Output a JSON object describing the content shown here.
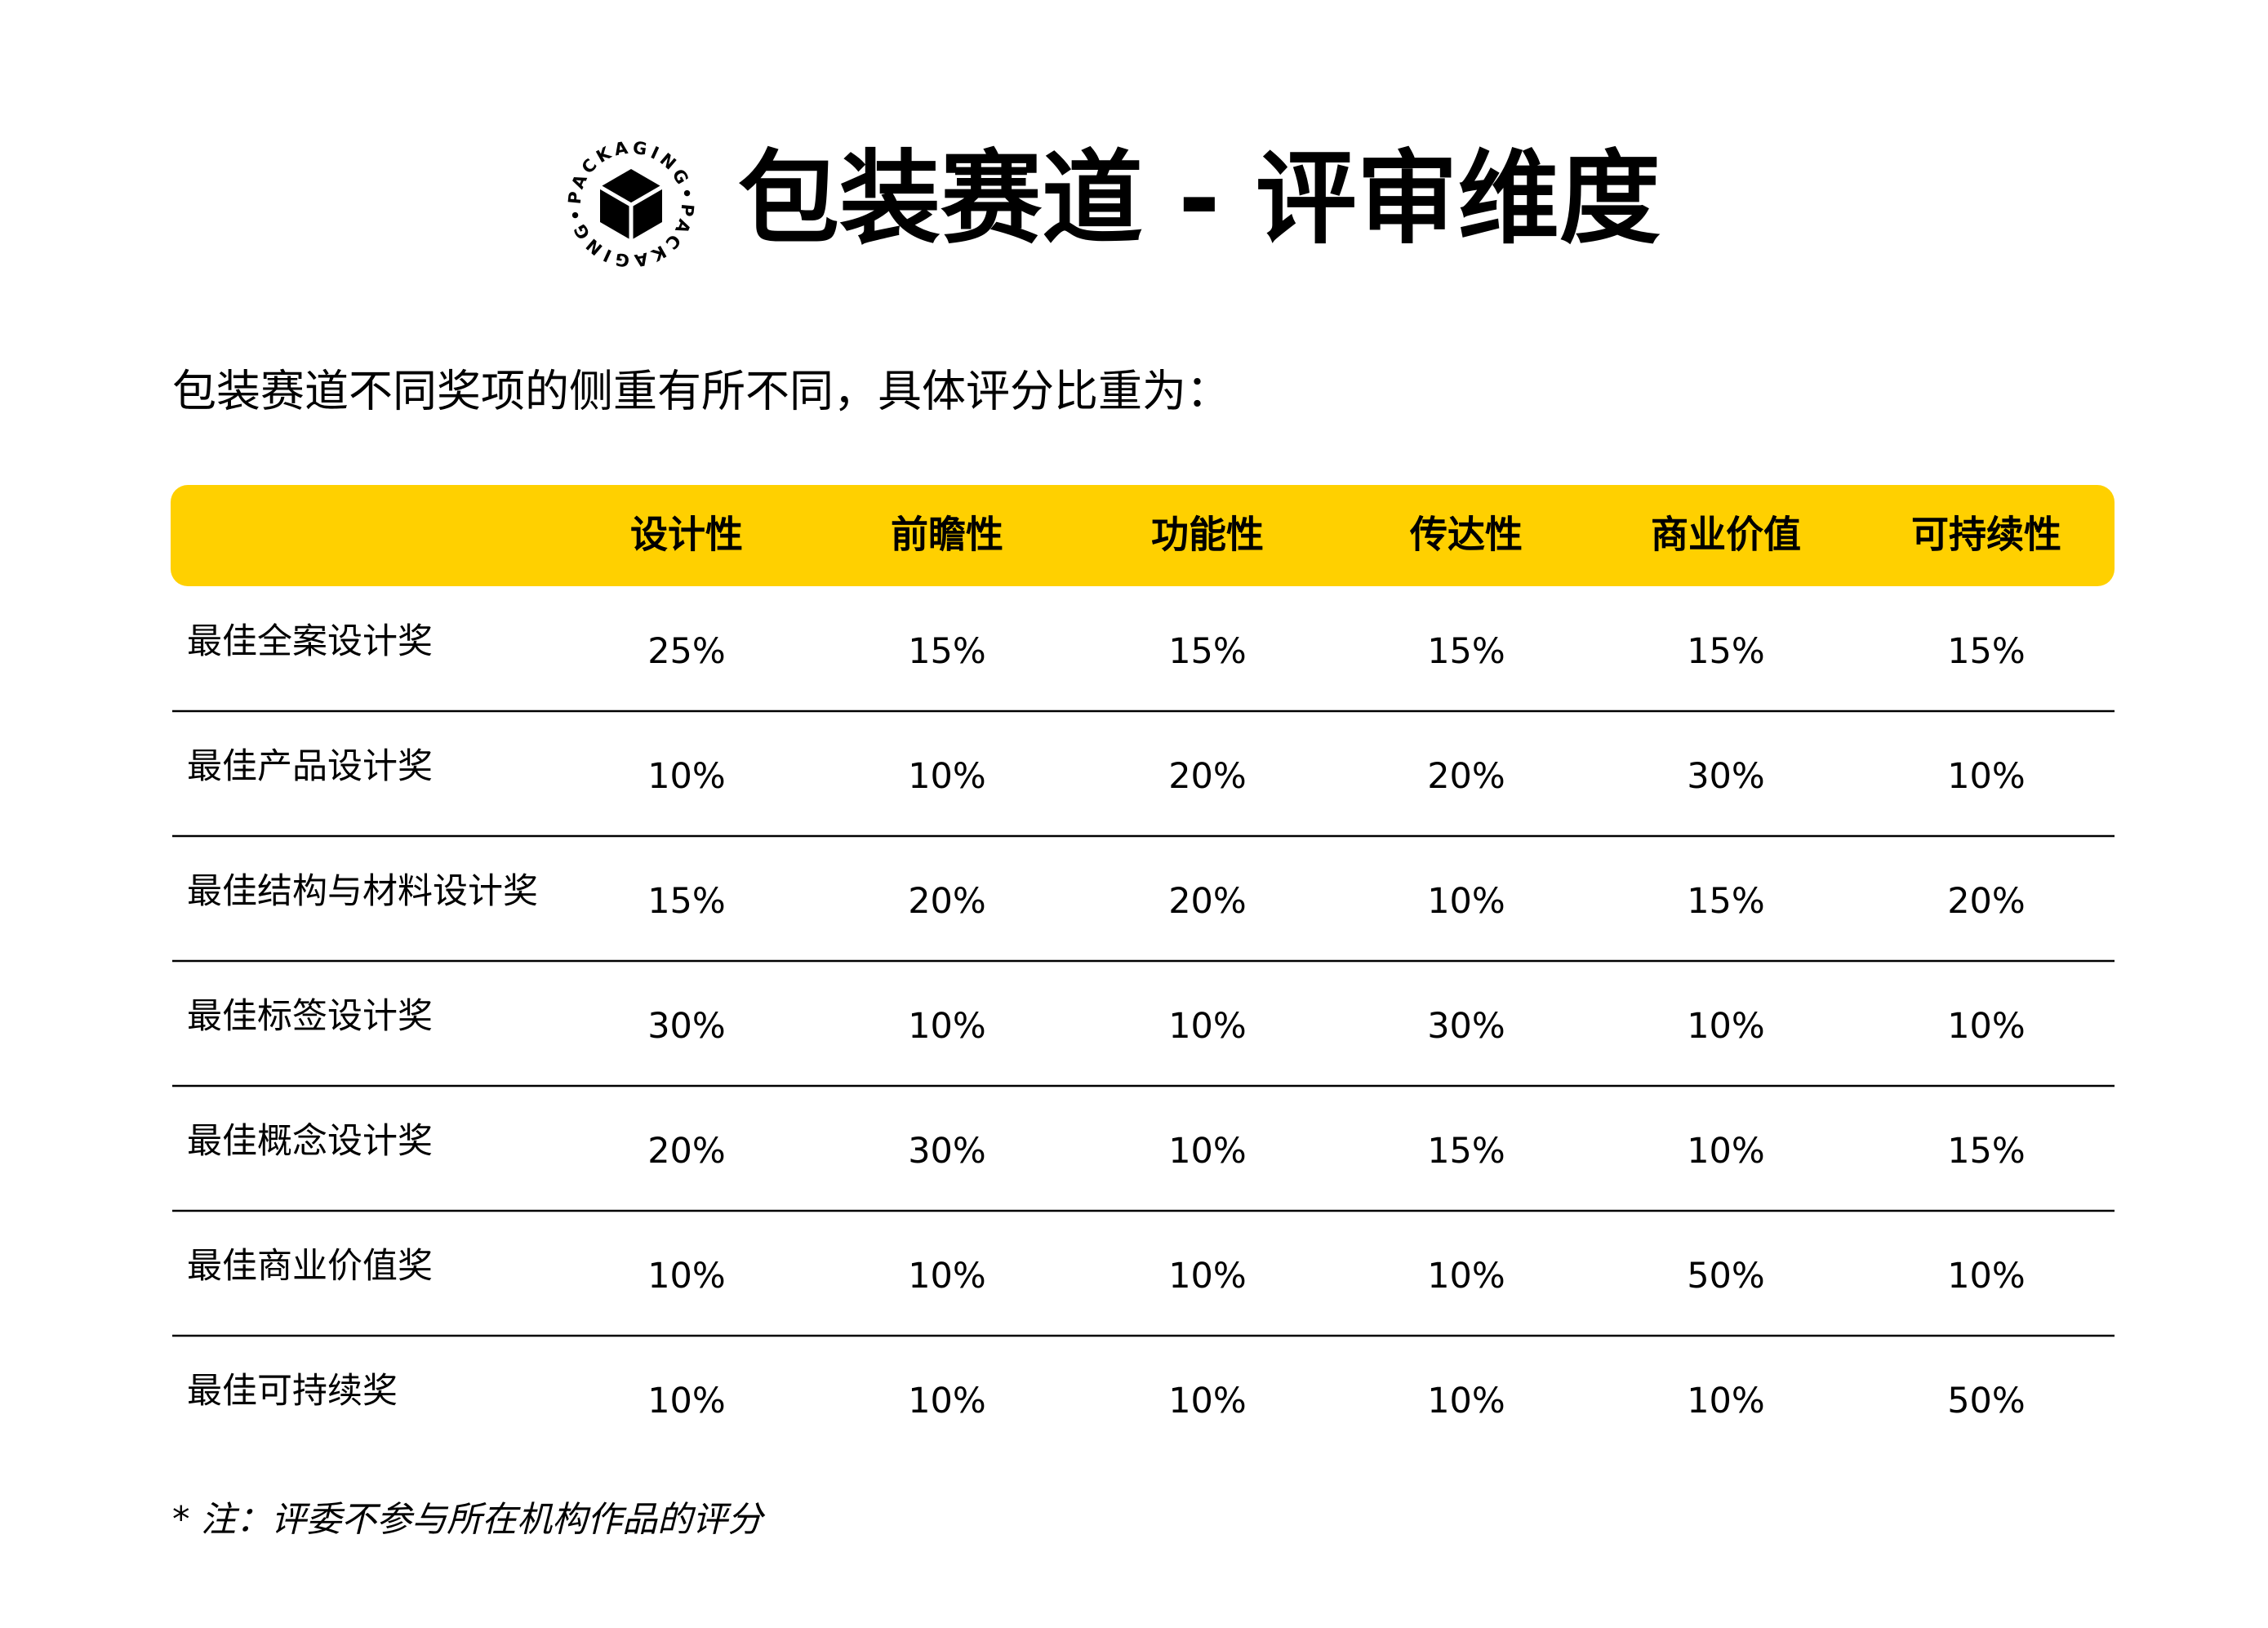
{
  "header": {
    "logo_text": "PACKAGING•PACKAGING•",
    "title": "包装赛道 - 评审维度"
  },
  "intro": "包装赛道不同奖项的侧重有所不同，具体评分比重为：",
  "table": {
    "columns": [
      "设计性",
      "前瞻性",
      "功能性",
      "传达性",
      "商业价值",
      "可持续性"
    ],
    "rows": [
      [
        "最佳全案设计奖",
        "25%",
        "15%",
        "15%",
        "15%",
        "15%",
        "15%"
      ],
      [
        "最佳产品设计奖",
        "10%",
        "10%",
        "20%",
        "20%",
        "30%",
        "10%"
      ],
      [
        "最佳结构与材料设计奖",
        "15%",
        "20%",
        "20%",
        "10%",
        "15%",
        "20%"
      ],
      [
        "最佳标签设计奖",
        "30%",
        "10%",
        "10%",
        "30%",
        "10%",
        "10%"
      ],
      [
        "最佳概念设计奖",
        "20%",
        "30%",
        "10%",
        "15%",
        "10%",
        "15%"
      ],
      [
        "最佳商业价值奖",
        "10%",
        "10%",
        "10%",
        "10%",
        "50%",
        "10%"
      ],
      [
        "最佳可持续奖",
        "10%",
        "10%",
        "10%",
        "10%",
        "10%",
        "50%"
      ]
    ]
  },
  "note": "* 注：评委不参与所在机构作品的评分"
}
